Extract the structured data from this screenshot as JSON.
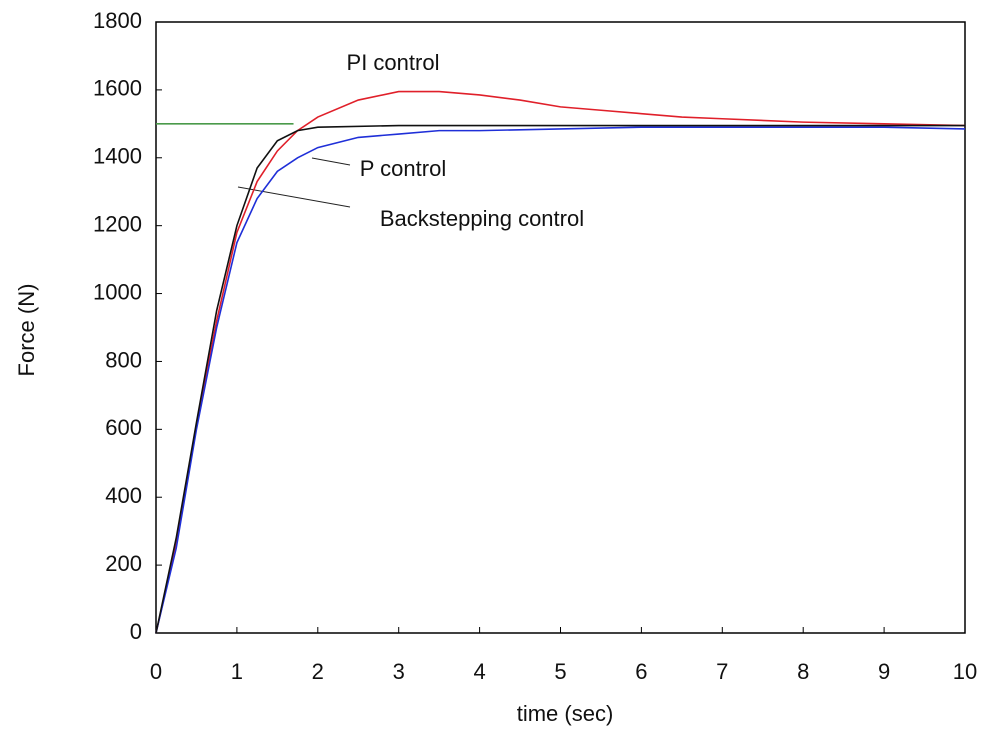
{
  "chart_data": {
    "type": "line",
    "x_label": "time (sec)",
    "y_label": "Force (N)",
    "xlim": [
      0,
      10
    ],
    "ylim": [
      0,
      1800
    ],
    "xticks": [
      0,
      1,
      2,
      3,
      4,
      5,
      6,
      7,
      8,
      9,
      10
    ],
    "yticks": [
      0,
      200,
      400,
      600,
      800,
      1000,
      1200,
      1400,
      1600,
      1800
    ],
    "grid": false,
    "series": [
      {
        "color": "#4a9a4a",
        "x": [
          0,
          1.7
        ],
        "values": [
          1500,
          1500
        ]
      },
      {
        "name": "PI control",
        "color": "#e0202a",
        "x": [
          0,
          0.25,
          0.5,
          0.75,
          1,
          1.25,
          1.5,
          1.75,
          2,
          2.5,
          3,
          3.5,
          4,
          4.5,
          5,
          5.5,
          6,
          6.5,
          7,
          8,
          9,
          10
        ],
        "values": [
          0,
          260,
          610,
          920,
          1180,
          1330,
          1420,
          1480,
          1520,
          1570,
          1595,
          1595,
          1585,
          1570,
          1550,
          1540,
          1530,
          1520,
          1515,
          1505,
          1500,
          1495
        ]
      },
      {
        "name": "P control",
        "color": "#1f2fd8",
        "x": [
          0,
          0.25,
          0.5,
          0.75,
          1,
          1.25,
          1.5,
          1.75,
          2,
          2.5,
          3,
          3.5,
          4,
          5,
          6,
          7,
          8,
          9,
          10
        ],
        "values": [
          0,
          250,
          600,
          900,
          1150,
          1280,
          1360,
          1400,
          1430,
          1460,
          1470,
          1480,
          1480,
          1485,
          1490,
          1490,
          1490,
          1490,
          1485
        ]
      },
      {
        "name": "Backstepping control",
        "color": "#111111",
        "x": [
          0,
          0.25,
          0.5,
          0.75,
          1,
          1.25,
          1.5,
          1.75,
          2,
          3,
          4,
          5,
          6,
          7,
          8,
          9,
          10
        ],
        "values": [
          0,
          280,
          620,
          950,
          1200,
          1370,
          1450,
          1480,
          1490,
          1495,
          1495,
          1495,
          1495,
          1495,
          1495,
          1495,
          1495
        ]
      }
    ]
  }
}
